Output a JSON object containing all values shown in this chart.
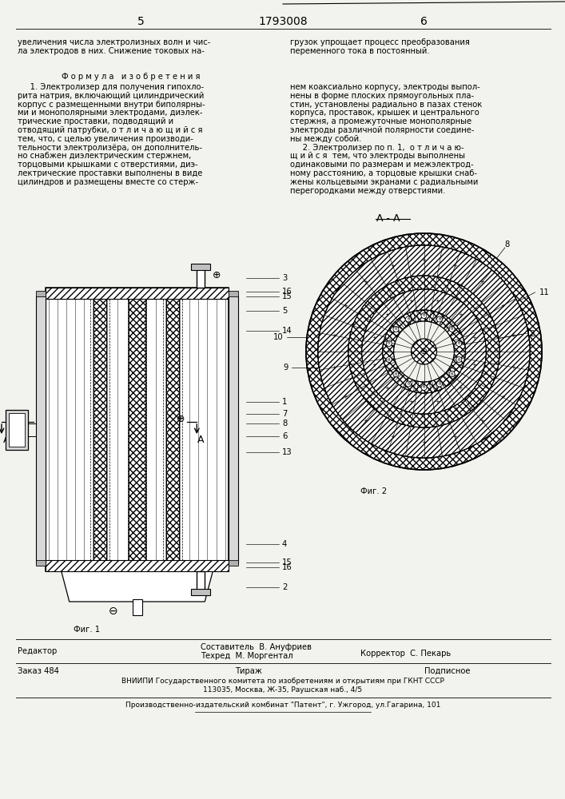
{
  "page_width": 7.07,
  "page_height": 10.0,
  "bg_color": "#f2f2ee",
  "top_line_text": "5",
  "top_center_text": "1793008",
  "top_right_text": "6",
  "header_top_text": "увеличения числа электролизных волн и чис-",
  "header_top_text2": "ла электродов в них. Снижение токовых на-",
  "header_top_right": "грузок упрощает процесс преобразования",
  "header_top_right2": "переменного тока в постоянный.",
  "formula_title": "Ф о р м у л а   и з о б р е т е н и я",
  "formula_text_left": [
    "     1. Электролизер для получения гипохло-",
    "рита натрия, включающий цилиндрический",
    "корпус с размещенными внутри биполярны-",
    "ми и монополярными электродами, диэлек-",
    "трические проставки, подводящий и",
    "отводящий патрубки, о т л и ч а ю щ и й с я",
    "тем, что, с целью увеличения производи-",
    "тельности электролизёра, он дополнитель-",
    "но снабжен диэлектрическим стержнем,",
    "торцовыми крышками с отверстиями, диэ-",
    "лектрические проставки выполнены в виде",
    "цилиндров и размещены вместе со стерж-"
  ],
  "formula_text_right": [
    "нем коаксиально корпусу, электроды выпол-",
    "нены в форме плоских прямоугольных пла-",
    "стин, установлены радиально в пазах стенок",
    "корпуса, проставок, крышек и центрального",
    "стержня, а промежуточные монополярные",
    "электроды различной полярности соедине-",
    "ны между собой.",
    "     2. Электролизер по п. 1,  о т л и ч а ю-",
    "щ и й с я  тем, что электроды выполнены",
    "одинаковыми по размерам и межэлектрод-",
    "ному расстоянию, а торцовые крышки снаб-",
    "жены кольцевыми экранами с радиальными",
    "перегородками между отверстиями."
  ],
  "fig1_label": "Фиг. 1",
  "fig2_label": "Фиг. 2",
  "cross_section_label": "А - А",
  "bottom_editor": "Редактор",
  "bottom_composer": "Составитель  В. Ануфриев",
  "bottom_tech": "Техред  М. Моргентал",
  "bottom_corrector": "Корректор  С. Пекарь",
  "bottom_order": "Заказ 484",
  "bottom_tirazh": "Тираж",
  "bottom_podpisnoe": "Подписное",
  "bottom_vniiipi": "ВНИИПИ Государственного комитета по изобретениям и открытиям при ГКНТ СССР",
  "bottom_address": "113035, Москва, Ж-35, Раушская наб., 4/5",
  "bottom_publisher": "Производственно-издательский комбинат \"Патент\", г. Ужгород, ул.Гагарина, 101"
}
